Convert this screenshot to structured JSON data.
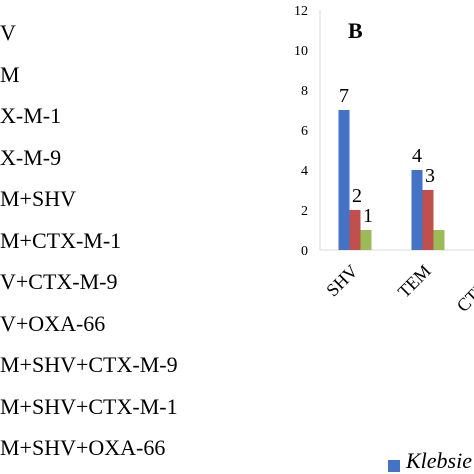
{
  "left_labels": [
    "V",
    "M",
    "X-M-1",
    "X-M-9",
    "M+SHV",
    "M+CTX-M-1",
    "V+CTX-M-9",
    "V+OXA-66",
    "M+SHV+CTX-M-9",
    "M+SHV+CTX-M-1",
    "M+SHV+OXA-66"
  ],
  "chart_data": {
    "type": "bar",
    "panel_label": "B",
    "categories": [
      "SHV",
      "TEM",
      "CTX-M"
    ],
    "series": [
      {
        "values": [
          7,
          4,
          null
        ],
        "color": "#4472C4"
      },
      {
        "values": [
          2,
          3,
          null
        ],
        "color": "#C0504D"
      },
      {
        "values": [
          1,
          1,
          null
        ],
        "color": "#9BBB59"
      }
    ],
    "data_labels": [
      [
        "7",
        "2",
        "1"
      ],
      [
        "4",
        "3",
        ""
      ],
      [
        "",
        "",
        ""
      ]
    ],
    "ylim": [
      0,
      12
    ],
    "yticks": [
      0,
      2,
      4,
      6,
      8,
      10,
      12
    ],
    "grid": false
  },
  "legend": {
    "text": "Klebsie",
    "color": "#4472C4"
  }
}
